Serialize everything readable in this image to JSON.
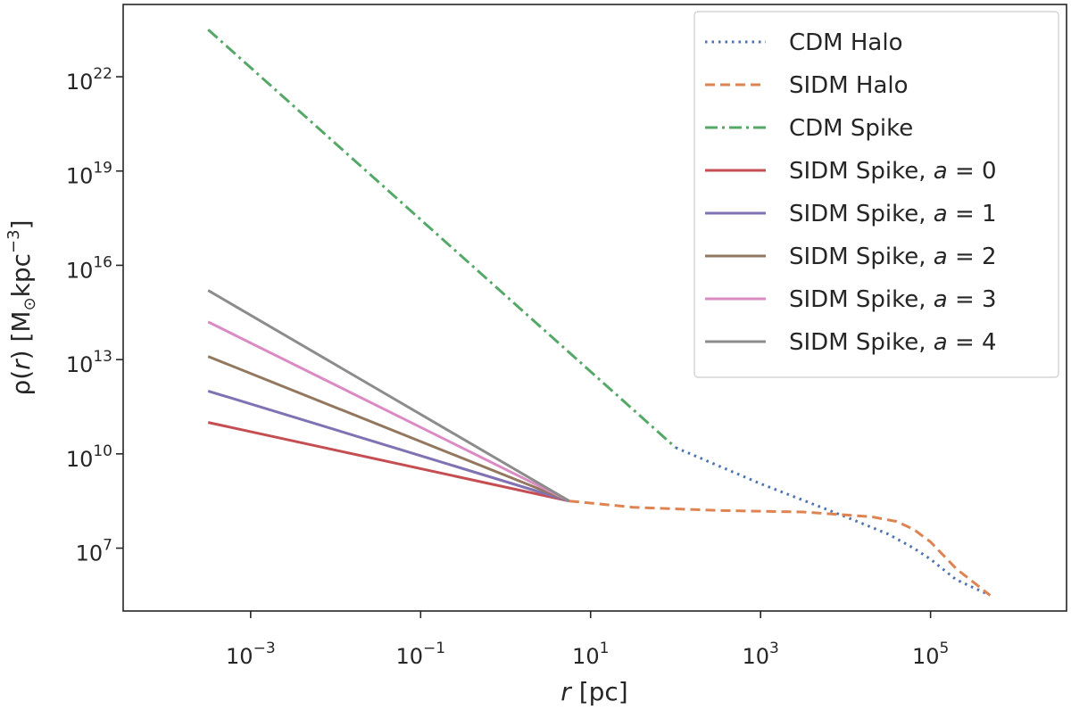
{
  "chart_data": {
    "type": "line",
    "xscale": "log",
    "yscale": "log",
    "xlabel": {
      "var": "r",
      "unit": " [pc]"
    },
    "ylabel": {
      "pre": "ρ(",
      "var": "r",
      "post": ")  [M",
      "sub": "⊙",
      "unit": "kpc",
      "sup": "−3",
      "end": "]"
    },
    "xlim_log10": [
      -4.5,
      6.6
    ],
    "ylim_log10": [
      5.0,
      24.3
    ],
    "x_ticks": [
      {
        "mantissa": "10",
        "exponent": "−3",
        "value": -3
      },
      {
        "mantissa": "10",
        "exponent": "−1",
        "value": -1
      },
      {
        "mantissa": "10",
        "exponent": "1",
        "value": 1
      },
      {
        "mantissa": "10",
        "exponent": "3",
        "value": 3
      },
      {
        "mantissa": "10",
        "exponent": "5",
        "value": 5
      }
    ],
    "y_ticks": [
      {
        "mantissa": "10",
        "exponent": "7",
        "value": 7
      },
      {
        "mantissa": "10",
        "exponent": "10",
        "value": 10
      },
      {
        "mantissa": "10",
        "exponent": "13",
        "value": 13
      },
      {
        "mantissa": "10",
        "exponent": "16",
        "value": 16
      },
      {
        "mantissa": "10",
        "exponent": "19",
        "value": 19
      },
      {
        "mantissa": "10",
        "exponent": "22",
        "value": 22
      }
    ],
    "legend_position": "top-right",
    "series": [
      {
        "name": "CDM Halo",
        "color": "#4c72b0",
        "style": "dotted",
        "log_x": [
          2.0,
          3.0,
          4.0,
          4.5,
          4.8,
          5.0,
          5.3,
          5.7
        ],
        "log_y": [
          10.2,
          9.05,
          8.0,
          7.45,
          7.0,
          6.65,
          6.0,
          5.5
        ]
      },
      {
        "name": "SIDM Halo",
        "color": "#dd8452",
        "style": "dashed",
        "log_x": [
          0.75,
          1.5,
          2.5,
          3.5,
          4.3,
          4.6,
          4.8,
          5.0,
          5.3,
          5.7
        ],
        "log_y": [
          8.5,
          8.3,
          8.2,
          8.15,
          8.0,
          7.85,
          7.6,
          7.2,
          6.35,
          5.5
        ]
      },
      {
        "name": "CDM Spike",
        "color": "#55a868",
        "style": "dashdot",
        "log_x": [
          -3.5,
          2.0
        ],
        "log_y": [
          23.5,
          10.2
        ]
      },
      {
        "name": "SIDM Spike, ",
        "math": "a = 0",
        "color": "#c44e52",
        "style": "solid",
        "log_x": [
          -3.5,
          0.75
        ],
        "log_y": [
          11.0,
          8.5
        ]
      },
      {
        "name": "SIDM Spike, ",
        "math": "a = 1",
        "color": "#8172b3",
        "style": "solid",
        "log_x": [
          -3.5,
          0.75
        ],
        "log_y": [
          12.0,
          8.5
        ]
      },
      {
        "name": "SIDM Spike, ",
        "math": "a = 2",
        "color": "#937860",
        "style": "solid",
        "log_x": [
          -3.5,
          0.75
        ],
        "log_y": [
          13.1,
          8.5
        ]
      },
      {
        "name": "SIDM Spike, ",
        "math": "a = 3",
        "color": "#da8bc3",
        "style": "solid",
        "log_x": [
          -3.5,
          0.75
        ],
        "log_y": [
          14.2,
          8.5
        ]
      },
      {
        "name": "SIDM Spike, ",
        "math": "a = 4",
        "color": "#8c8c8c",
        "style": "solid",
        "log_x": [
          -3.5,
          0.75
        ],
        "log_y": [
          15.2,
          8.5
        ]
      }
    ]
  }
}
